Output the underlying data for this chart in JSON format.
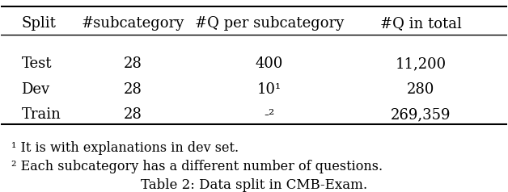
{
  "headers": [
    "Split",
    "#subcategory",
    "#Q per subcategory",
    "#Q in total"
  ],
  "rows": [
    [
      "Test",
      "28",
      "400",
      "11,200"
    ],
    [
      "Dev",
      "28",
      "10¹",
      "280"
    ],
    [
      "Train",
      "28",
      "-²",
      "269,359"
    ]
  ],
  "footnotes": [
    "¹ It is with explanations in dev set.",
    "² Each subcategory has a different number of questions."
  ],
  "caption": "Table 2: Data split in CMB-Exam.",
  "bg_color": "#ffffff",
  "text_color": "#000000",
  "fontsize": 13,
  "header_fontsize": 13,
  "footnote_fontsize": 11.5,
  "caption_fontsize": 12
}
